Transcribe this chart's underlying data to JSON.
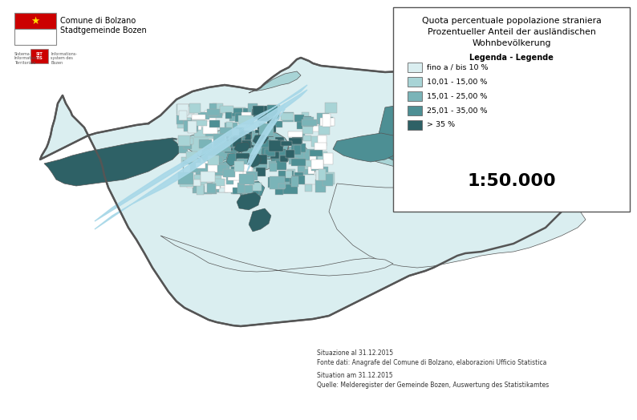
{
  "title_line1": "Quota percentuale popolazione straniera",
  "title_line2": "Prozentueller Anteil der ausländischen",
  "title_line3": "Wohnbevölkerung",
  "legend_title": "Legenda - Legende",
  "legend_items": [
    {
      "label": "fino a / bis 10 %",
      "color": "#daeef0"
    },
    {
      "label": "10,01 - 15,00 %",
      "color": "#a8d4d6"
    },
    {
      "label": "15,01 - 25,00 %",
      "color": "#7ab4b8"
    },
    {
      "label": "25,01 - 35,00 %",
      "color": "#4d8f94"
    },
    {
      "label": "> 35 %",
      "color": "#2e6166"
    }
  ],
  "scale": "1:50.000",
  "logo_text1": "Comune di Bolzano",
  "logo_text2": "Stadtgemeinde Bozen",
  "source_it1": "Situazione al 31.12.2015",
  "source_it2": "Fonte dati: Anagrafe del Comune di Bolzano, elaborazioni Ufficio Statistica",
  "source_de1": "Situation am 31.12.2015",
  "source_de2": "Quelle: Melderegister der Gemeinde Bozen, Auswertung des Statistikamtes",
  "background_color": "#ffffff",
  "map_border_color": "#555555",
  "river_color": "#a8d8e8",
  "colors": {
    "light": "#daeef0",
    "med_light": "#a8d4d6",
    "medium": "#7ab4b8",
    "med_dark": "#4d8f94",
    "dark": "#2e6166"
  }
}
